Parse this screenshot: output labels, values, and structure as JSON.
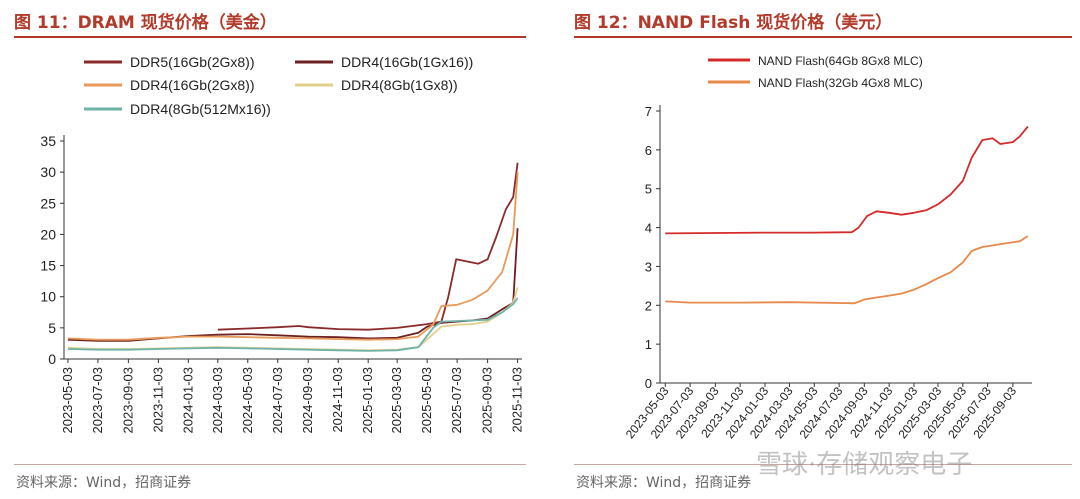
{
  "left": {
    "title": "图 11：DRAM 现货价格（美金）",
    "source": "资料来源：Wind，招商证券"
  },
  "right": {
    "title": "图 12：NAND Flash 现货价格（美元）",
    "source": "资料来源：Wind，招商证券"
  },
  "watermark": "雪球·存储观察电子",
  "chart_data": [
    {
      "type": "line",
      "title": "",
      "xlabel": "",
      "ylabel": "",
      "ylim": [
        0,
        35
      ],
      "yticks": [
        0,
        5,
        10,
        15,
        20,
        25,
        30,
        35
      ],
      "x_tick_labels": [
        "2023-05-03",
        "2023-07-03",
        "2023-09-03",
        "2023-11-03",
        "2024-01-03",
        "2024-03-03",
        "2024-05-03",
        "2024-07-03",
        "2024-09-03",
        "2024-11-03",
        "2025-01-03",
        "2025-03-03",
        "2025-05-03",
        "2025-07-03",
        "2025-09-03",
        "2025-11-03"
      ],
      "grid": false,
      "legend_position": "top",
      "series": [
        {
          "name": "DDR5(16Gb(2Gx8))",
          "color": "#8b2a2a",
          "points": [
            [
              "2024-03-03",
              4.7
            ],
            [
              "2024-05-03",
              4.9
            ],
            [
              "2024-07-03",
              5.1
            ],
            [
              "2024-08-15",
              5.3
            ],
            [
              "2024-09-03",
              5.1
            ],
            [
              "2024-11-03",
              4.8
            ],
            [
              "2025-01-03",
              4.7
            ],
            [
              "2025-03-03",
              5.0
            ],
            [
              "2025-05-03",
              5.6
            ],
            [
              "2025-06-01",
              6.0
            ],
            [
              "2025-06-15",
              10.0
            ],
            [
              "2025-07-01",
              16.0
            ],
            [
              "2025-07-15",
              15.8
            ],
            [
              "2025-08-15",
              15.3
            ],
            [
              "2025-09-03",
              16.0
            ],
            [
              "2025-09-20",
              19.5
            ],
            [
              "2025-10-10",
              24.0
            ],
            [
              "2025-10-25",
              26.0
            ],
            [
              "2025-11-03",
              31.5
            ]
          ]
        },
        {
          "name": "DDR4(16Gb(1Gx16))",
          "color": "#6e2020",
          "points": [
            [
              "2023-05-03",
              3.1
            ],
            [
              "2023-07-03",
              2.9
            ],
            [
              "2023-09-03",
              2.9
            ],
            [
              "2023-11-03",
              3.3
            ],
            [
              "2024-01-03",
              3.7
            ],
            [
              "2024-03-03",
              3.9
            ],
            [
              "2024-05-03",
              4.0
            ],
            [
              "2024-07-03",
              3.8
            ],
            [
              "2024-09-03",
              3.6
            ],
            [
              "2024-11-03",
              3.5
            ],
            [
              "2025-01-03",
              3.3
            ],
            [
              "2025-03-03",
              3.4
            ],
            [
              "2025-04-15",
              4.2
            ],
            [
              "2025-05-03",
              5.2
            ],
            [
              "2025-06-01",
              5.8
            ],
            [
              "2025-07-03",
              6.0
            ],
            [
              "2025-08-03",
              6.2
            ],
            [
              "2025-09-03",
              6.5
            ],
            [
              "2025-10-03",
              8.0
            ],
            [
              "2025-10-25",
              9.0
            ],
            [
              "2025-11-03",
              21.0
            ]
          ]
        },
        {
          "name": "DDR4(16Gb(2Gx8))",
          "color": "#e89a5a",
          "points": [
            [
              "2023-05-03",
              3.3
            ],
            [
              "2023-07-03",
              3.1
            ],
            [
              "2023-09-03",
              3.1
            ],
            [
              "2023-11-03",
              3.4
            ],
            [
              "2024-01-03",
              3.6
            ],
            [
              "2024-03-03",
              3.6
            ],
            [
              "2024-05-03",
              3.5
            ],
            [
              "2024-07-03",
              3.4
            ],
            [
              "2024-09-03",
              3.3
            ],
            [
              "2024-11-03",
              3.2
            ],
            [
              "2025-01-03",
              3.1
            ],
            [
              "2025-03-03",
              3.2
            ],
            [
              "2025-04-15",
              3.6
            ],
            [
              "2025-05-15",
              5.5
            ],
            [
              "2025-06-01",
              8.5
            ],
            [
              "2025-07-03",
              8.7
            ],
            [
              "2025-08-03",
              9.5
            ],
            [
              "2025-09-03",
              11.0
            ],
            [
              "2025-10-03",
              14.0
            ],
            [
              "2025-10-25",
              20.0
            ],
            [
              "2025-11-03",
              30.0
            ]
          ]
        },
        {
          "name": "DDR4(8Gb(1Gx8))",
          "color": "#e2cf8a",
          "points": [
            [
              "2023-05-03",
              1.8
            ],
            [
              "2023-07-03",
              1.6
            ],
            [
              "2023-09-03",
              1.6
            ],
            [
              "2023-11-03",
              1.7
            ],
            [
              "2024-01-03",
              1.8
            ],
            [
              "2024-03-03",
              1.9
            ],
            [
              "2024-05-03",
              1.8
            ],
            [
              "2024-07-03",
              1.7
            ],
            [
              "2024-09-03",
              1.6
            ],
            [
              "2024-11-03",
              1.5
            ],
            [
              "2025-01-03",
              1.4
            ],
            [
              "2025-03-03",
              1.5
            ],
            [
              "2025-04-15",
              1.9
            ],
            [
              "2025-05-15",
              4.0
            ],
            [
              "2025-06-01",
              5.2
            ],
            [
              "2025-07-03",
              5.5
            ],
            [
              "2025-08-03",
              5.6
            ],
            [
              "2025-09-03",
              6.0
            ],
            [
              "2025-10-03",
              7.5
            ],
            [
              "2025-10-25",
              9.0
            ],
            [
              "2025-11-03",
              11.5
            ]
          ]
        },
        {
          "name": "DDR4(8Gb(512Mx16))",
          "color": "#6fb3a8",
          "points": [
            [
              "2023-05-03",
              1.6
            ],
            [
              "2023-07-03",
              1.5
            ],
            [
              "2023-09-03",
              1.5
            ],
            [
              "2023-11-03",
              1.6
            ],
            [
              "2024-01-03",
              1.7
            ],
            [
              "2024-03-03",
              1.8
            ],
            [
              "2024-05-03",
              1.7
            ],
            [
              "2024-07-03",
              1.6
            ],
            [
              "2024-09-03",
              1.5
            ],
            [
              "2024-11-03",
              1.4
            ],
            [
              "2025-01-03",
              1.3
            ],
            [
              "2025-03-03",
              1.4
            ],
            [
              "2025-04-15",
              1.9
            ],
            [
              "2025-05-15",
              5.0
            ],
            [
              "2025-06-01",
              6.0
            ],
            [
              "2025-07-03",
              6.1
            ],
            [
              "2025-08-03",
              6.2
            ],
            [
              "2025-09-03",
              6.3
            ],
            [
              "2025-10-03",
              7.5
            ],
            [
              "2025-10-25",
              8.8
            ],
            [
              "2025-11-03",
              9.8
            ]
          ]
        }
      ]
    },
    {
      "type": "line",
      "title": "",
      "xlabel": "",
      "ylabel": "",
      "ylim": [
        0,
        7
      ],
      "yticks": [
        0,
        1,
        2,
        3,
        4,
        5,
        6,
        7
      ],
      "x_tick_labels": [
        "2023-05-03",
        "2023-07-03",
        "2023-09-03",
        "2023-11-03",
        "2024-01-03",
        "2024-03-03",
        "2024-05-03",
        "2024-07-03",
        "2024-09-03",
        "2024-11-03",
        "2025-01-03",
        "2025-03-03",
        "2025-05-03",
        "2025-07-03",
        "2025-09-03"
      ],
      "grid": false,
      "legend_position": "top",
      "series": [
        {
          "name": "NAND Flash(64Gb 8Gx8 MLC)",
          "color": "#d42a2a",
          "points": [
            [
              "2023-05-03",
              3.85
            ],
            [
              "2023-09-03",
              3.86
            ],
            [
              "2024-01-03",
              3.87
            ],
            [
              "2024-05-03",
              3.87
            ],
            [
              "2024-08-03",
              3.88
            ],
            [
              "2024-08-20",
              4.0
            ],
            [
              "2024-09-10",
              4.3
            ],
            [
              "2024-10-03",
              4.42
            ],
            [
              "2024-11-03",
              4.38
            ],
            [
              "2024-12-03",
              4.33
            ],
            [
              "2025-01-03",
              4.38
            ],
            [
              "2025-02-03",
              4.45
            ],
            [
              "2025-03-03",
              4.6
            ],
            [
              "2025-04-03",
              4.85
            ],
            [
              "2025-05-03",
              5.2
            ],
            [
              "2025-05-25",
              5.8
            ],
            [
              "2025-06-20",
              6.25
            ],
            [
              "2025-07-15",
              6.3
            ],
            [
              "2025-08-03",
              6.15
            ],
            [
              "2025-09-03",
              6.2
            ],
            [
              "2025-09-20",
              6.35
            ],
            [
              "2025-10-10",
              6.6
            ]
          ]
        },
        {
          "name": "NAND Flash(32Gb 4Gx8 MLC)",
          "color": "#e8884a",
          "points": [
            [
              "2023-05-03",
              2.1
            ],
            [
              "2023-07-03",
              2.07
            ],
            [
              "2023-11-03",
              2.07
            ],
            [
              "2024-03-03",
              2.08
            ],
            [
              "2024-07-03",
              2.06
            ],
            [
              "2024-08-10",
              2.05
            ],
            [
              "2024-09-03",
              2.15
            ],
            [
              "2024-10-03",
              2.2
            ],
            [
              "2024-11-03",
              2.25
            ],
            [
              "2024-12-03",
              2.3
            ],
            [
              "2025-01-03",
              2.4
            ],
            [
              "2025-02-03",
              2.55
            ],
            [
              "2025-03-03",
              2.7
            ],
            [
              "2025-04-03",
              2.85
            ],
            [
              "2025-05-03",
              3.1
            ],
            [
              "2025-05-25",
              3.4
            ],
            [
              "2025-06-20",
              3.5
            ],
            [
              "2025-07-20",
              3.55
            ],
            [
              "2025-08-20",
              3.6
            ],
            [
              "2025-09-20",
              3.65
            ],
            [
              "2025-10-10",
              3.78
            ]
          ]
        }
      ]
    }
  ]
}
